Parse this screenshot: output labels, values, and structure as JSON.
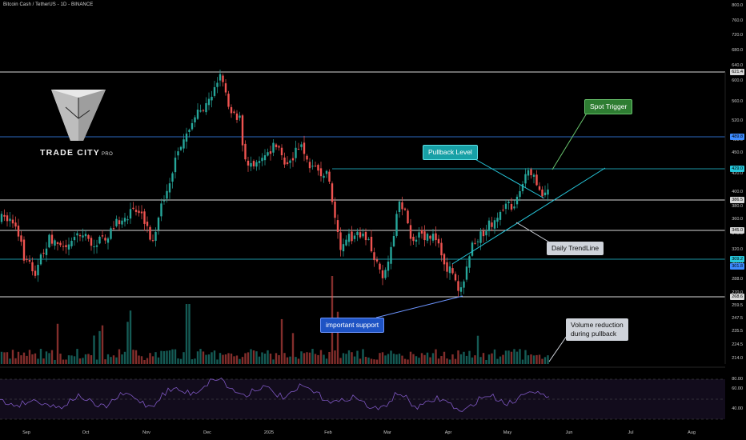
{
  "header": {
    "title": "Bitcoin Cash / TetherUS - 1D - BINANCE"
  },
  "logo": {
    "name": "TRADE CITY",
    "suffix": "PRO"
  },
  "callouts": {
    "spot_trigger": "Spot Trigger",
    "pullback_level": "Pullback Level",
    "daily_trendline": "Daily TrendLine",
    "important_support": "important support",
    "volume_line1": "Volume reduction",
    "volume_line2": "during pullback"
  },
  "price_axis": [
    "800.0",
    "760.0",
    "720.0",
    "680.0",
    "640.0",
    "600.0",
    "560.0",
    "520.0",
    "480.0",
    "450.0",
    "420.0",
    "400.0",
    "380.0",
    "360.0",
    "340.0",
    "320.0",
    "300.0",
    "288.0",
    "270.0",
    "259.5",
    "247.5",
    "235.5",
    "224.5",
    "214.0"
  ],
  "level_tags": [
    {
      "label": "621.4",
      "color": "#d8d8d8"
    },
    {
      "label": "489.8",
      "color": "#3d8bff"
    },
    {
      "label": "429.0",
      "color": "#26c6da"
    },
    {
      "label": "386.5",
      "color": "#d8d8d8"
    },
    {
      "label": "345.0",
      "color": "#d8d8d8"
    },
    {
      "label": "309.2",
      "color": "#26c6da"
    },
    {
      "label": "301.8",
      "color": "#3d8bff"
    },
    {
      "label": "268.6",
      "color": "#d8d8d8"
    }
  ],
  "rsi_axis": [
    "80.00",
    "60.00",
    "40.00"
  ],
  "time_axis": [
    "Sep",
    "Oct",
    "Nov",
    "Dec",
    "2025",
    "Feb",
    "Mar",
    "Apr",
    "May",
    "Jun",
    "Jul",
    "Aug"
  ],
  "colors": {
    "bull": "#26a69a",
    "bear": "#ef5350",
    "trendline": "#26c6da",
    "rsi": "#7e57c2",
    "level": "#d8d8d8",
    "level_blue": "#3d8bff"
  }
}
